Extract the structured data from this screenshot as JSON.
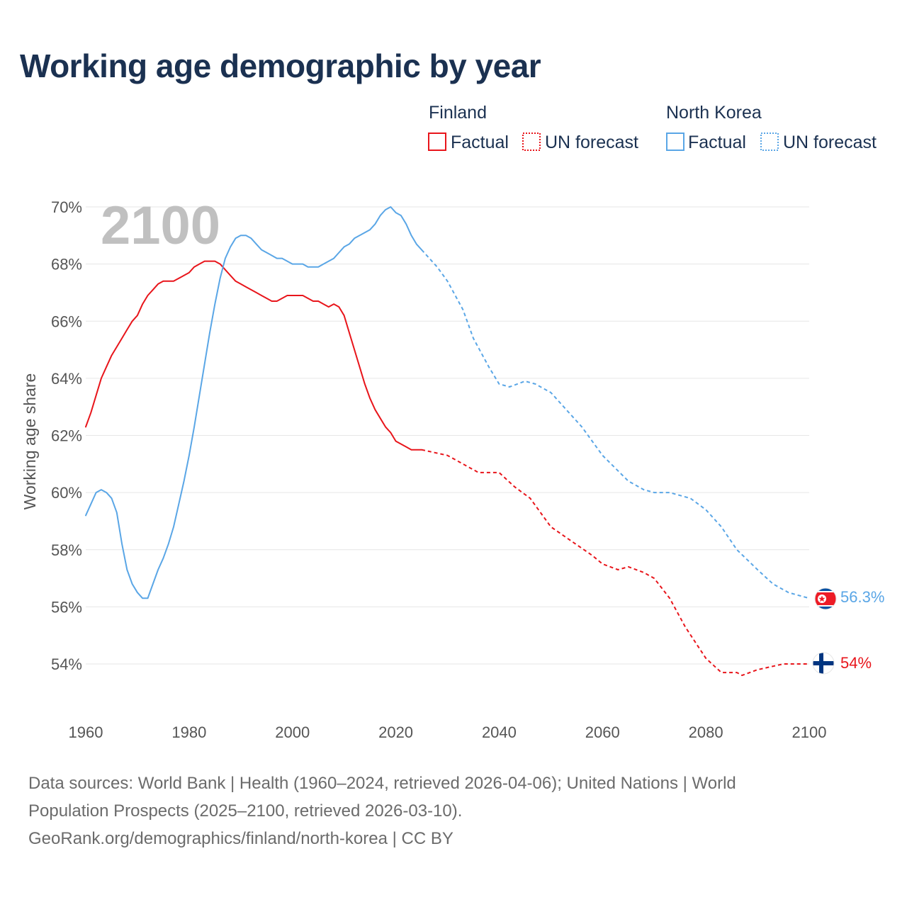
{
  "title": "Working age demographic by year",
  "year_label": "2100",
  "colors": {
    "finland": "#e8151b",
    "north_korea": "#5aa6e6"
  },
  "legend": {
    "groups": [
      {
        "title": "Finland",
        "factual": "Factual",
        "forecast": "UN forecast",
        "color": "#e8151b"
      },
      {
        "title": "North Korea",
        "factual": "Factual",
        "forecast": "UN forecast",
        "color": "#5aa6e6"
      }
    ]
  },
  "footer": {
    "line1": "Data sources: World Bank | Health (1960–2024, retrieved 2026-04-06); United Nations | World",
    "line2": "Population Prospects (2025–2100, retrieved 2026-03-10).",
    "line3": "GeoRank.org/demographics/finland/north-korea | CC BY"
  },
  "chart_data": {
    "type": "line",
    "title": "Working age demographic by year",
    "ylabel": "Working age share",
    "xlabel": "",
    "xlim": [
      1960,
      2100
    ],
    "ylim": [
      52.5,
      70
    ],
    "x_ticks": [
      "1960",
      "1980",
      "2000",
      "2020",
      "2040",
      "2060",
      "2080",
      "2100"
    ],
    "y_ticks": [
      {
        "value": 54,
        "label": "54%"
      },
      {
        "value": 56,
        "label": "56%"
      },
      {
        "value": 58,
        "label": "58%"
      },
      {
        "value": 60,
        "label": "60%"
      },
      {
        "value": 62,
        "label": "62%"
      },
      {
        "value": 64,
        "label": "64%"
      },
      {
        "value": 66,
        "label": "66%"
      },
      {
        "value": 68,
        "label": "68%"
      },
      {
        "value": 70,
        "label": "70%"
      }
    ],
    "grid": true,
    "series": [
      {
        "name": "Finland",
        "color": "#e8151b",
        "end_label": "54%",
        "factual": {
          "x": [
            1960,
            1961,
            1962,
            1963,
            1964,
            1965,
            1966,
            1967,
            1968,
            1969,
            1970,
            1971,
            1972,
            1973,
            1974,
            1975,
            1976,
            1977,
            1978,
            1979,
            1980,
            1981,
            1982,
            1983,
            1984,
            1985,
            1986,
            1987,
            1988,
            1989,
            1990,
            1991,
            1992,
            1993,
            1994,
            1995,
            1996,
            1997,
            1998,
            1999,
            2000,
            2001,
            2002,
            2003,
            2004,
            2005,
            2006,
            2007,
            2008,
            2009,
            2010,
            2011,
            2012,
            2013,
            2014,
            2015,
            2016,
            2017,
            2018,
            2019,
            2020,
            2021,
            2022,
            2023,
            2024,
            2025
          ],
          "y": [
            62.3,
            62.8,
            63.4,
            64.0,
            64.4,
            64.8,
            65.1,
            65.4,
            65.7,
            66.0,
            66.2,
            66.6,
            66.9,
            67.1,
            67.3,
            67.4,
            67.4,
            67.4,
            67.5,
            67.6,
            67.7,
            67.9,
            68.0,
            68.1,
            68.1,
            68.1,
            68.0,
            67.8,
            67.6,
            67.4,
            67.3,
            67.2,
            67.1,
            67.0,
            66.9,
            66.8,
            66.7,
            66.7,
            66.8,
            66.9,
            66.9,
            66.9,
            66.9,
            66.8,
            66.7,
            66.7,
            66.6,
            66.5,
            66.6,
            66.5,
            66.2,
            65.6,
            65.0,
            64.4,
            63.8,
            63.3,
            62.9,
            62.6,
            62.3,
            62.1,
            61.8,
            61.7,
            61.6,
            61.5,
            61.5,
            61.5
          ]
        },
        "forecast": {
          "x": [
            2025,
            2030,
            2033,
            2036,
            2040,
            2043,
            2046,
            2050,
            2054,
            2058,
            2060,
            2063,
            2065,
            2068,
            2070,
            2073,
            2076,
            2080,
            2083,
            2086,
            2087,
            2090,
            2095,
            2100
          ],
          "y": [
            61.5,
            61.3,
            61.0,
            60.7,
            60.7,
            60.2,
            59.8,
            58.8,
            58.3,
            57.8,
            57.5,
            57.3,
            57.4,
            57.2,
            57.0,
            56.3,
            55.3,
            54.2,
            53.7,
            53.7,
            53.6,
            53.8,
            54.0,
            54.0
          ]
        }
      },
      {
        "name": "North Korea",
        "color": "#5aa6e6",
        "end_label": "56.3%",
        "factual": {
          "x": [
            1960,
            1961,
            1962,
            1963,
            1964,
            1965,
            1966,
            1967,
            1968,
            1969,
            1970,
            1971,
            1972,
            1973,
            1974,
            1975,
            1976,
            1977,
            1978,
            1979,
            1980,
            1981,
            1982,
            1983,
            1984,
            1985,
            1986,
            1987,
            1988,
            1989,
            1990,
            1991,
            1992,
            1993,
            1994,
            1995,
            1996,
            1997,
            1998,
            1999,
            2000,
            2001,
            2002,
            2003,
            2004,
            2005,
            2006,
            2007,
            2008,
            2009,
            2010,
            2011,
            2012,
            2013,
            2014,
            2015,
            2016,
            2017,
            2018,
            2019,
            2020,
            2021,
            2022,
            2023,
            2024,
            2025
          ],
          "y": [
            59.2,
            59.6,
            60.0,
            60.1,
            60.0,
            59.8,
            59.3,
            58.2,
            57.3,
            56.8,
            56.5,
            56.3,
            56.3,
            56.8,
            57.3,
            57.7,
            58.2,
            58.8,
            59.6,
            60.4,
            61.3,
            62.3,
            63.4,
            64.5,
            65.6,
            66.6,
            67.5,
            68.2,
            68.6,
            68.9,
            69.0,
            69.0,
            68.9,
            68.7,
            68.5,
            68.4,
            68.3,
            68.2,
            68.2,
            68.1,
            68.0,
            68.0,
            68.0,
            67.9,
            67.9,
            67.9,
            68.0,
            68.1,
            68.2,
            68.4,
            68.6,
            68.7,
            68.9,
            69.0,
            69.1,
            69.2,
            69.4,
            69.7,
            69.9,
            70.0,
            69.8,
            69.7,
            69.4,
            69.0,
            68.7,
            68.5
          ]
        },
        "forecast": {
          "x": [
            2025,
            2028,
            2030,
            2033,
            2035,
            2038,
            2040,
            2042,
            2045,
            2047,
            2050,
            2053,
            2056,
            2060,
            2065,
            2068,
            2070,
            2073,
            2075,
            2077,
            2080,
            2083,
            2086,
            2090,
            2093,
            2096,
            2098,
            2100
          ],
          "y": [
            68.5,
            67.9,
            67.4,
            66.4,
            65.4,
            64.4,
            63.8,
            63.7,
            63.9,
            63.8,
            63.5,
            62.9,
            62.3,
            61.3,
            60.4,
            60.1,
            60.0,
            60.0,
            59.9,
            59.8,
            59.4,
            58.8,
            58.0,
            57.3,
            56.8,
            56.5,
            56.4,
            56.3
          ]
        }
      }
    ]
  }
}
